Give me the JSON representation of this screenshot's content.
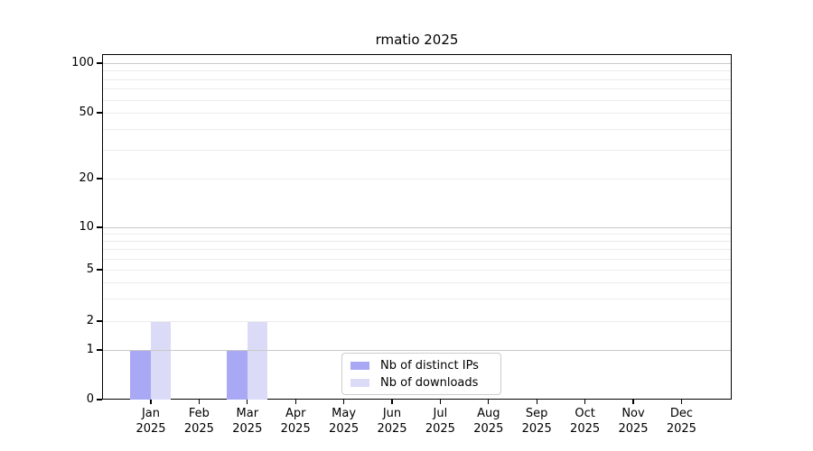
{
  "chart_data": {
    "type": "bar",
    "title": "rmatio 2025",
    "categories": [
      "Jan",
      "Feb",
      "Mar",
      "Apr",
      "May",
      "Jun",
      "Jul",
      "Aug",
      "Sep",
      "Oct",
      "Nov",
      "Dec"
    ],
    "x_tick_year_line": "2025",
    "series": [
      {
        "name": "Nb of distinct IPs",
        "color": "#a8a8f4",
        "values": [
          1,
          0,
          1,
          0,
          0,
          0,
          0,
          0,
          0,
          0,
          0,
          0
        ]
      },
      {
        "name": "Nb of downloads",
        "color": "#dbdbf8",
        "values": [
          2,
          0,
          2,
          0,
          0,
          0,
          0,
          0,
          0,
          0,
          0,
          0
        ]
      }
    ],
    "y_ticks": [
      0,
      1,
      2,
      5,
      10,
      20,
      50,
      100
    ],
    "ylim": [
      0,
      100
    ],
    "yscale": "log-like with linear 0-1 segment",
    "grid": "horizontal major and minor log gridlines",
    "grid_major_color": "#c9c9c9",
    "grid_minor_color": "#ececec",
    "legend_position": "bottom-center inside plot",
    "bar_colors": {
      "distinct_ips": "#a8a8f4",
      "downloads": "#dbdbf8"
    }
  }
}
